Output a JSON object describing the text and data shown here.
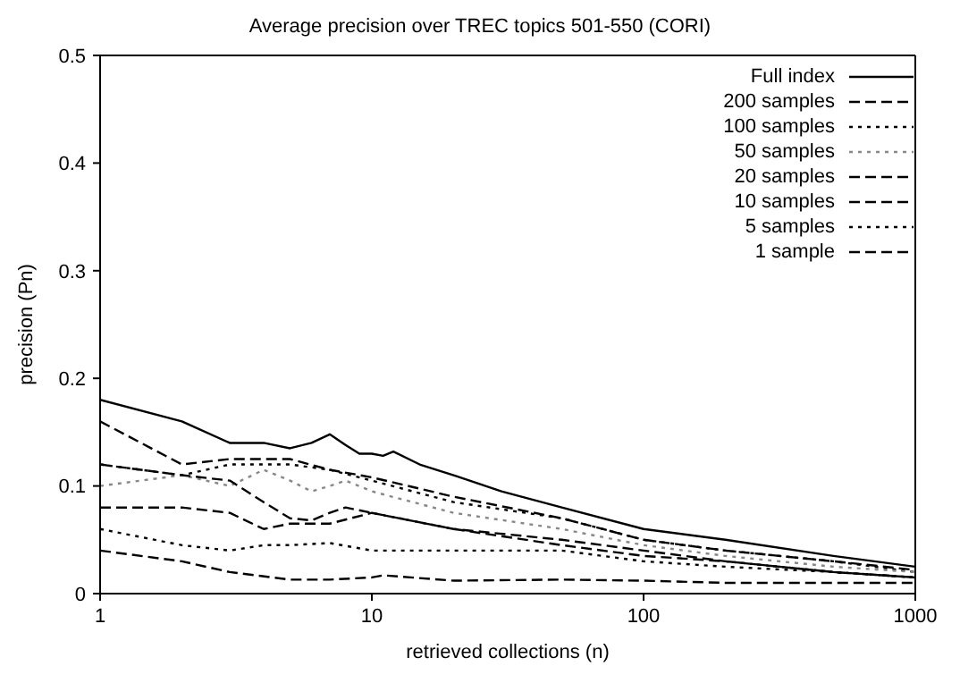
{
  "chart_data": {
    "type": "line",
    "title": "Average precision over TREC topics 501-550 (CORI)",
    "xlabel": "retrieved collections (n)",
    "ylabel": "precision (Pn)",
    "log": "x",
    "xlim": [
      1,
      1000
    ],
    "xticks": [
      1,
      10,
      100,
      1000
    ],
    "ylim": [
      0,
      0.5
    ],
    "yticks": [
      0,
      0.1,
      0.2,
      0.3,
      0.4,
      0.5
    ],
    "grid": false,
    "legend": "top right",
    "marker": "none",
    "series": [
      {
        "name": "Full index",
        "color": "#000000",
        "line_style": "solid",
        "x": [
          1,
          2,
          3,
          4,
          5,
          6,
          7,
          8,
          9,
          10,
          11,
          12,
          15,
          20,
          30,
          50,
          100,
          200,
          500,
          1000
        ],
        "values": [
          0.18,
          0.16,
          0.14,
          0.14,
          0.135,
          0.14,
          0.148,
          0.138,
          0.13,
          0.13,
          0.128,
          0.132,
          0.12,
          0.11,
          0.095,
          0.08,
          0.06,
          0.05,
          0.035,
          0.025
        ]
      },
      {
        "name": "200 samples",
        "color": "#000000",
        "line_style": "dashed",
        "x": [
          1,
          2,
          3,
          4,
          5,
          7,
          10,
          20,
          50,
          100,
          200,
          500,
          1000
        ],
        "values": [
          0.16,
          0.12,
          0.125,
          0.125,
          0.125,
          0.115,
          0.108,
          0.09,
          0.07,
          0.05,
          0.04,
          0.03,
          0.022
        ]
      },
      {
        "name": "100 samples",
        "color": "#000000",
        "line_style": "dotted",
        "x": [
          1,
          2,
          3,
          4,
          5,
          7,
          10,
          20,
          50,
          100,
          200,
          500,
          1000
        ],
        "values": [
          0.12,
          0.11,
          0.12,
          0.12,
          0.12,
          0.115,
          0.105,
          0.085,
          0.07,
          0.05,
          0.04,
          0.03,
          0.02
        ]
      },
      {
        "name": "50 samples",
        "color": "#888888",
        "line_style": "dotted",
        "x": [
          1,
          2,
          3,
          4,
          5,
          6,
          7,
          8,
          10,
          20,
          50,
          100,
          200,
          500,
          1000
        ],
        "values": [
          0.1,
          0.11,
          0.1,
          0.115,
          0.105,
          0.095,
          0.1,
          0.105,
          0.095,
          0.075,
          0.06,
          0.045,
          0.035,
          0.025,
          0.02
        ]
      },
      {
        "name": "20 samples",
        "color": "#000000",
        "line_style": "dashed",
        "x": [
          1,
          2,
          3,
          4,
          5,
          6,
          7,
          8,
          10,
          20,
          50,
          100,
          200,
          500,
          1000
        ],
        "values": [
          0.12,
          0.11,
          0.105,
          0.085,
          0.07,
          0.068,
          0.075,
          0.08,
          0.075,
          0.06,
          0.045,
          0.035,
          0.03,
          0.02,
          0.015
        ]
      },
      {
        "name": "10 samples",
        "color": "#000000",
        "line_style": "dashed",
        "x": [
          1,
          2,
          3,
          4,
          5,
          7,
          10,
          20,
          50,
          100,
          200,
          500,
          1000
        ],
        "values": [
          0.08,
          0.08,
          0.075,
          0.06,
          0.065,
          0.065,
          0.075,
          0.06,
          0.05,
          0.04,
          0.03,
          0.02,
          0.015
        ]
      },
      {
        "name": "5 samples",
        "color": "#000000",
        "line_style": "dotted",
        "x": [
          1,
          2,
          3,
          4,
          5,
          7,
          10,
          20,
          50,
          100,
          200,
          500,
          1000
        ],
        "values": [
          0.06,
          0.045,
          0.04,
          0.045,
          0.045,
          0.047,
          0.04,
          0.04,
          0.04,
          0.03,
          0.025,
          0.02,
          0.015
        ]
      },
      {
        "name": "1 sample",
        "color": "#000000",
        "line_style": "dashed",
        "x": [
          1,
          2,
          3,
          5,
          7,
          10,
          11,
          20,
          50,
          100,
          200,
          500,
          1000
        ],
        "values": [
          0.04,
          0.03,
          0.02,
          0.013,
          0.013,
          0.015,
          0.017,
          0.012,
          0.013,
          0.012,
          0.01,
          0.01,
          0.01
        ]
      }
    ]
  }
}
